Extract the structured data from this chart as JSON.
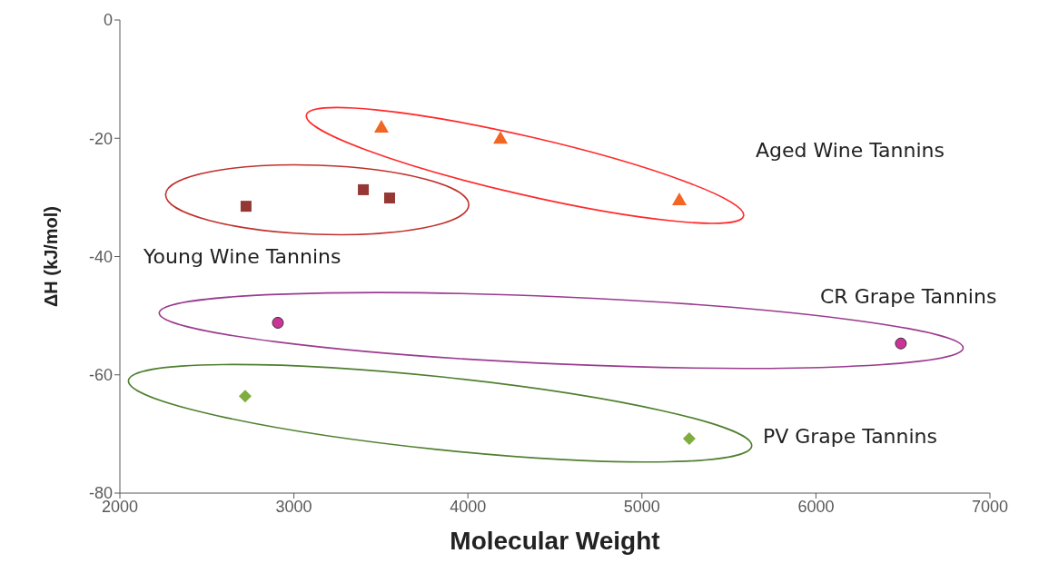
{
  "chart_data": {
    "type": "scatter",
    "xlabel": "Molecular Weight",
    "ylabel": "ΔH (kJ/mol)",
    "xlim": [
      2000,
      7000
    ],
    "xticks": [
      2000,
      3000,
      4000,
      5000,
      6000,
      7000
    ],
    "ylim": [
      -80,
      0
    ],
    "yticks": [
      -80,
      -60,
      -40,
      -20,
      0
    ],
    "series": [
      {
        "color": "#953735",
        "marker": "square",
        "x": [
          2725,
          3399,
          3550
        ],
        "values": [
          -31.5,
          -28.7,
          -30.1
        ]
      },
      {
        "color": "#f26522",
        "marker": "triangle",
        "x": [
          3503,
          4187,
          5215
        ],
        "values": [
          -18.1,
          -20.0,
          -30.4
        ]
      },
      {
        "color": "#cc3399",
        "marker": "circle",
        "x": [
          2908,
          6488
        ],
        "values": [
          -51.2,
          -54.7
        ]
      },
      {
        "color": "#7fad3f",
        "marker": "diamond",
        "x": [
          2720,
          5272
        ],
        "values": [
          -63.6,
          -70.8
        ]
      }
    ],
    "annotations": [
      "Aged Wine Tannins",
      "Young Wine Tannins",
      "CR Grape Tannins",
      "PV Grape Tannins"
    ]
  }
}
